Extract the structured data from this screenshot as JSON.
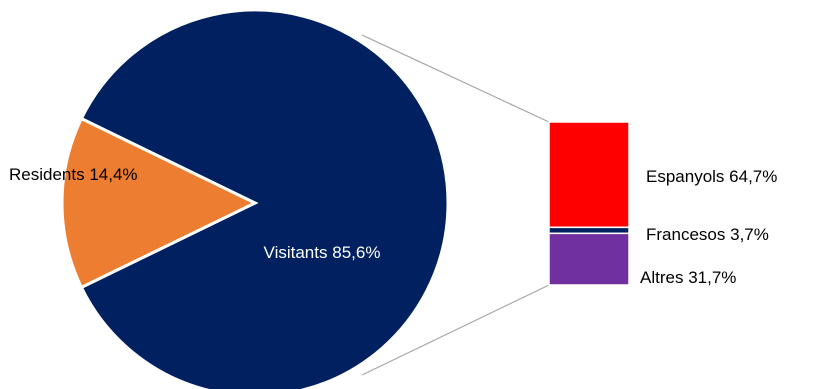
{
  "chart_data": {
    "type": "pie",
    "subtype": "bar-of-pie",
    "pie": {
      "slices": [
        {
          "label": "Visitants",
          "value": 85.6,
          "value_text": "85,6%",
          "color": "#002060",
          "label_color": "#ffffff"
        },
        {
          "label": "Residents",
          "value": 14.4,
          "value_text": "14,4%",
          "color": "#ed7d31",
          "label_color": "#000000"
        }
      ]
    },
    "bar": {
      "breakdown_of": "Visitants",
      "segments": [
        {
          "label": "Espanyols",
          "value": 64.7,
          "value_text": "64,7%",
          "color": "#ff0000"
        },
        {
          "label": "Francesos",
          "value": 3.7,
          "value_text": "3,7%",
          "color": "#002060"
        },
        {
          "label": "Altres",
          "value": 31.7,
          "value_text": "31,7%",
          "color": "#7030a0"
        }
      ]
    },
    "connector_color": "#a6a6a6",
    "legend": "none"
  }
}
